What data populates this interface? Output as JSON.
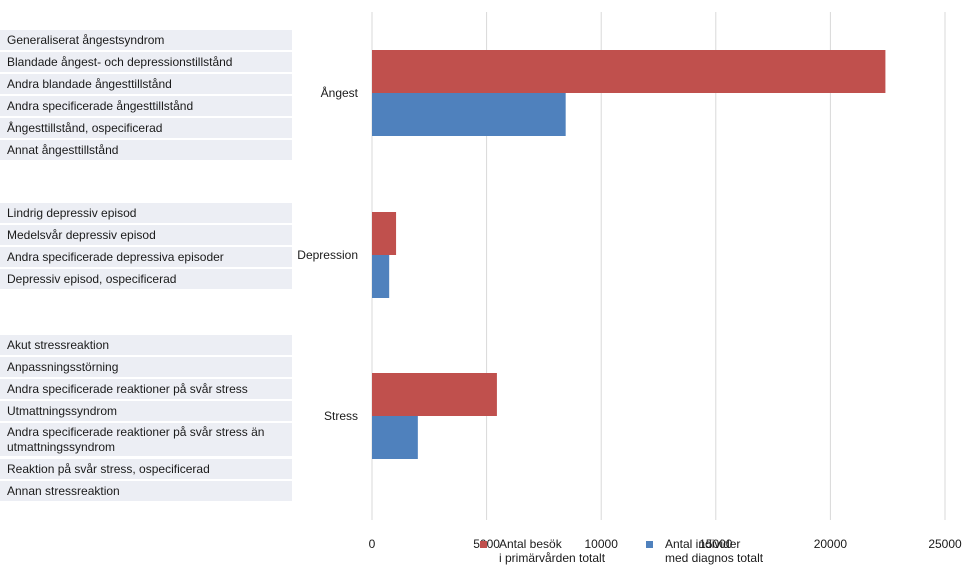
{
  "chart_data": {
    "type": "bar",
    "orientation": "horizontal",
    "categories": [
      "Ångest",
      "Depression",
      "Stress"
    ],
    "series": [
      {
        "name": "Antal besök i primärvården totalt",
        "color": "#c0504d",
        "values": [
          22400,
          1050,
          5450
        ]
      },
      {
        "name": "Antal individer med diagnos totalt",
        "color": "#4f81bd",
        "values": [
          8450,
          750,
          2000
        ]
      }
    ],
    "xlim": [
      0,
      25000
    ],
    "xticks": [
      "0",
      "5000",
      "10000",
      "15000",
      "20000",
      "25000"
    ],
    "grid": "vertical",
    "legend_position": "bottom",
    "legend": [
      {
        "line1": "Antal besök",
        "line2": "i primärvården totalt",
        "color": "#c0504d"
      },
      {
        "line1": "Antal individer",
        "line2": "med diagnos totalt",
        "color": "#4f81bd"
      }
    ],
    "title": "",
    "xlabel": "",
    "ylabel": ""
  },
  "diagnoses": [
    {
      "group": "Ångest",
      "items": [
        "Generaliserat ångestsyndrom",
        "Blandade ångest- och depressionstillstånd",
        "Andra blandade ångesttillstånd",
        "Andra specificerade ångesttillstånd",
        "Ångesttillstånd, ospecificerad",
        "Annat ångesttillstånd"
      ]
    },
    {
      "group": "Depression",
      "items": [
        "Lindrig depressiv episod",
        "Medelsvår depressiv episod",
        "Andra specificerade depressiva episoder",
        "Depressiv episod, ospecificerad"
      ]
    },
    {
      "group": "Stress",
      "items": [
        "Akut stressreaktion",
        "Anpassningsstörning",
        "Andra specificerade reaktioner på svår stress",
        "Utmattningssyndrom",
        "Andra specificerade reaktioner på svår stress än utmattningssyndrom",
        "Reaktion på svår stress, ospecificerad",
        "Annan stressreaktion"
      ]
    }
  ]
}
